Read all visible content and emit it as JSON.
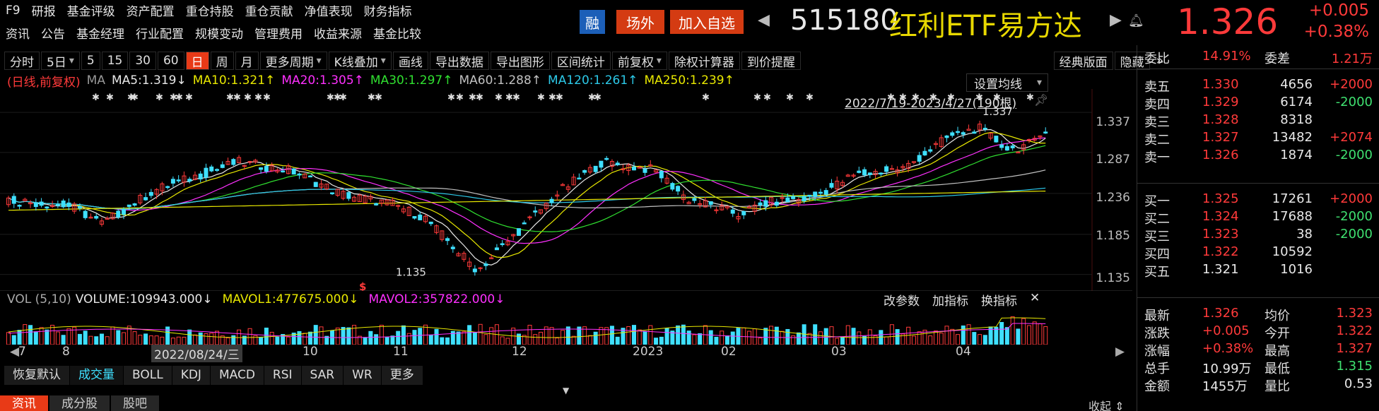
{
  "menu_row1": [
    "F9",
    "研报",
    "基金评级",
    "资产配置",
    "重仓持股",
    "重仓贡献",
    "净值表现",
    "财务指标"
  ],
  "menu_row2": [
    "资讯",
    "公告",
    "基金经理",
    "行业配置",
    "规模变动",
    "管理费用",
    "收益来源",
    "基金比较"
  ],
  "badges": {
    "rong": "融",
    "changwai": "场外",
    "add": "加入自选"
  },
  "stock": {
    "code": "515180",
    "name": "红利ETF易方达",
    "price": "1.326",
    "change": "+0.005",
    "change_pct": "+0.38%"
  },
  "toolbar": [
    "分时",
    "5日",
    "5",
    "15",
    "30",
    "60",
    "日",
    "周",
    "月",
    "更多周期",
    "K线叠加",
    "画线",
    "导出数据",
    "导出图形",
    "区间统计",
    "前复权",
    "除权计算器",
    "到价提醒"
  ],
  "toolbar_right": [
    "经典版面",
    "隐藏"
  ],
  "ma": {
    "prefix": "(日线,前复权)",
    "ma_label": "MA",
    "ma5": "MA5:1.319↓",
    "ma10": "MA10:1.321↑",
    "ma20": "MA20:1.305↑",
    "ma30": "MA30:1.297↑",
    "ma60": "MA60:1.288↑",
    "ma120": "MA120:1.261↑",
    "ma250": "MA250:1.239↑",
    "settings": "设置均线",
    "range": "2022/7/19-2023/4/27(190根)"
  },
  "colors": {
    "ma5": "#e8e8e8",
    "ma10": "#e8e800",
    "ma20": "#ff30ff",
    "ma30": "#30e030",
    "ma60": "#c0c0c0",
    "ma120": "#2cc9e8",
    "ma250": "#e8e800",
    "up": "#ff3a3a",
    "down": "#3fe0ff"
  },
  "y_axis": [
    "1.337",
    "1.287",
    "1.236",
    "1.185",
    "1.135"
  ],
  "annotations": {
    "high": "1.337",
    "low": "1.135"
  },
  "vol": {
    "label": "VOL (5,10)",
    "volume": "VOLUME:109943.000↓",
    "mavol1": "MAVOL1:477675.000↓",
    "mavol2": "MAVOL2:357822.000↓",
    "buttons": [
      "改参数",
      "加指标",
      "换指标"
    ]
  },
  "x_axis": {
    "labels": [
      "7",
      "8",
      "10",
      "11",
      "12",
      "2023",
      "02",
      "03",
      "04"
    ],
    "cursor": "2022/08/24/三"
  },
  "indicator_tabs": [
    "恢复默认",
    "成交量",
    "BOLL",
    "KDJ",
    "MACD",
    "RSI",
    "SAR",
    "WR",
    "更多"
  ],
  "bottom_tabs": [
    "资讯",
    "成分股",
    "股吧"
  ],
  "collapse": "收起",
  "order_book": {
    "weibi_label": "委比",
    "weibi": "14.91%",
    "weicha_label": "委差",
    "weicha": "1.21万",
    "asks": [
      {
        "label": "卖五",
        "price": "1.330",
        "vol": "4656",
        "chg": "+2000"
      },
      {
        "label": "卖四",
        "price": "1.329",
        "vol": "6174",
        "chg": "-2000"
      },
      {
        "label": "卖三",
        "price": "1.328",
        "vol": "8318",
        "chg": ""
      },
      {
        "label": "卖二",
        "price": "1.327",
        "vol": "13482",
        "chg": "+2074"
      },
      {
        "label": "卖一",
        "price": "1.326",
        "vol": "1874",
        "chg": "-2000"
      }
    ],
    "bids": [
      {
        "label": "买一",
        "price": "1.325",
        "vol": "17261",
        "chg": "+2000"
      },
      {
        "label": "买二",
        "price": "1.324",
        "vol": "17688",
        "chg": "-2000"
      },
      {
        "label": "买三",
        "price": "1.323",
        "vol": "38",
        "chg": "-2000"
      },
      {
        "label": "买四",
        "price": "1.322",
        "vol": "10592",
        "chg": ""
      },
      {
        "label": "买五",
        "price": "1.321",
        "vol": "1016",
        "chg": ""
      }
    ]
  },
  "stats": [
    {
      "l1": "最新",
      "v1": "1.326",
      "l2": "均价",
      "v2": "1.323"
    },
    {
      "l1": "涨跌",
      "v1": "+0.005",
      "l2": "今开",
      "v2": "1.322"
    },
    {
      "l1": "涨幅",
      "v1": "+0.38%",
      "l2": "最高",
      "v2": "1.327"
    },
    {
      "l1": "总手",
      "v1": "10.99万",
      "l2": "最低",
      "v2": "1.315"
    },
    {
      "l1": "金额",
      "v1": "1455万",
      "l2": "量比",
      "v2": "0.53"
    }
  ]
}
